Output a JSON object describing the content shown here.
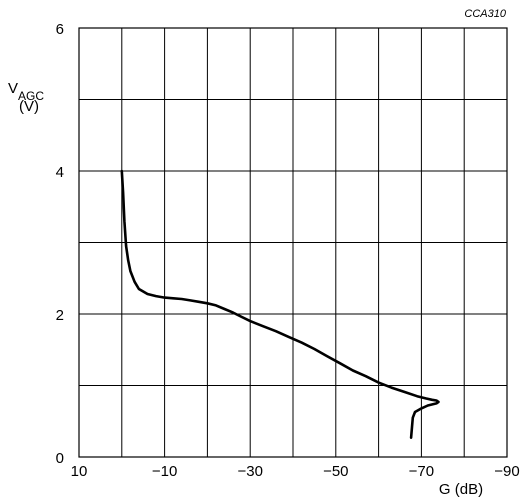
{
  "chart_data": {
    "type": "line",
    "figure_code": "CCA310",
    "title": "",
    "xlabel": "G (dB)",
    "ylabel_main": "V",
    "ylabel_sub": "AGC",
    "ylabel_unit": "(V)",
    "xlim": [
      10,
      -90
    ],
    "ylim": [
      0,
      6
    ],
    "x_ticks": [
      10,
      -10,
      -30,
      -50,
      -70,
      -90
    ],
    "x_tick_labels": [
      "10",
      "−10",
      "−30",
      "−50",
      "−70",
      "−90"
    ],
    "y_ticks": [
      0,
      2,
      4,
      6
    ],
    "y_tick_labels": [
      "0",
      "2",
      "4",
      "6"
    ],
    "x_grid_step": 10,
    "y_grid_step": 1,
    "grid": true,
    "series": [
      {
        "x": [
          0,
          -0.3,
          -0.6,
          -1,
          -1.5,
          -2,
          -3,
          -4,
          -6,
          -8,
          -10,
          -12,
          -14,
          -16,
          -18,
          -20,
          -22,
          -24,
          -26,
          -28,
          -30,
          -33,
          -36,
          -39,
          -42,
          -45,
          -48,
          -51,
          -54,
          -57,
          -60,
          -63,
          -66,
          -69,
          -71,
          -72.5,
          -73.5,
          -74,
          -73.5,
          -71.5,
          -70,
          -68.5,
          -68,
          -67.8,
          -67.6
        ],
        "y": [
          4.0,
          3.7,
          3.3,
          2.95,
          2.75,
          2.6,
          2.45,
          2.35,
          2.28,
          2.25,
          2.23,
          2.22,
          2.21,
          2.19,
          2.17,
          2.15,
          2.12,
          2.07,
          2.02,
          1.96,
          1.9,
          1.83,
          1.76,
          1.68,
          1.6,
          1.51,
          1.41,
          1.31,
          1.21,
          1.13,
          1.04,
          0.97,
          0.91,
          0.85,
          0.82,
          0.8,
          0.79,
          0.77,
          0.75,
          0.72,
          0.68,
          0.63,
          0.55,
          0.42,
          0.27
        ]
      }
    ]
  }
}
